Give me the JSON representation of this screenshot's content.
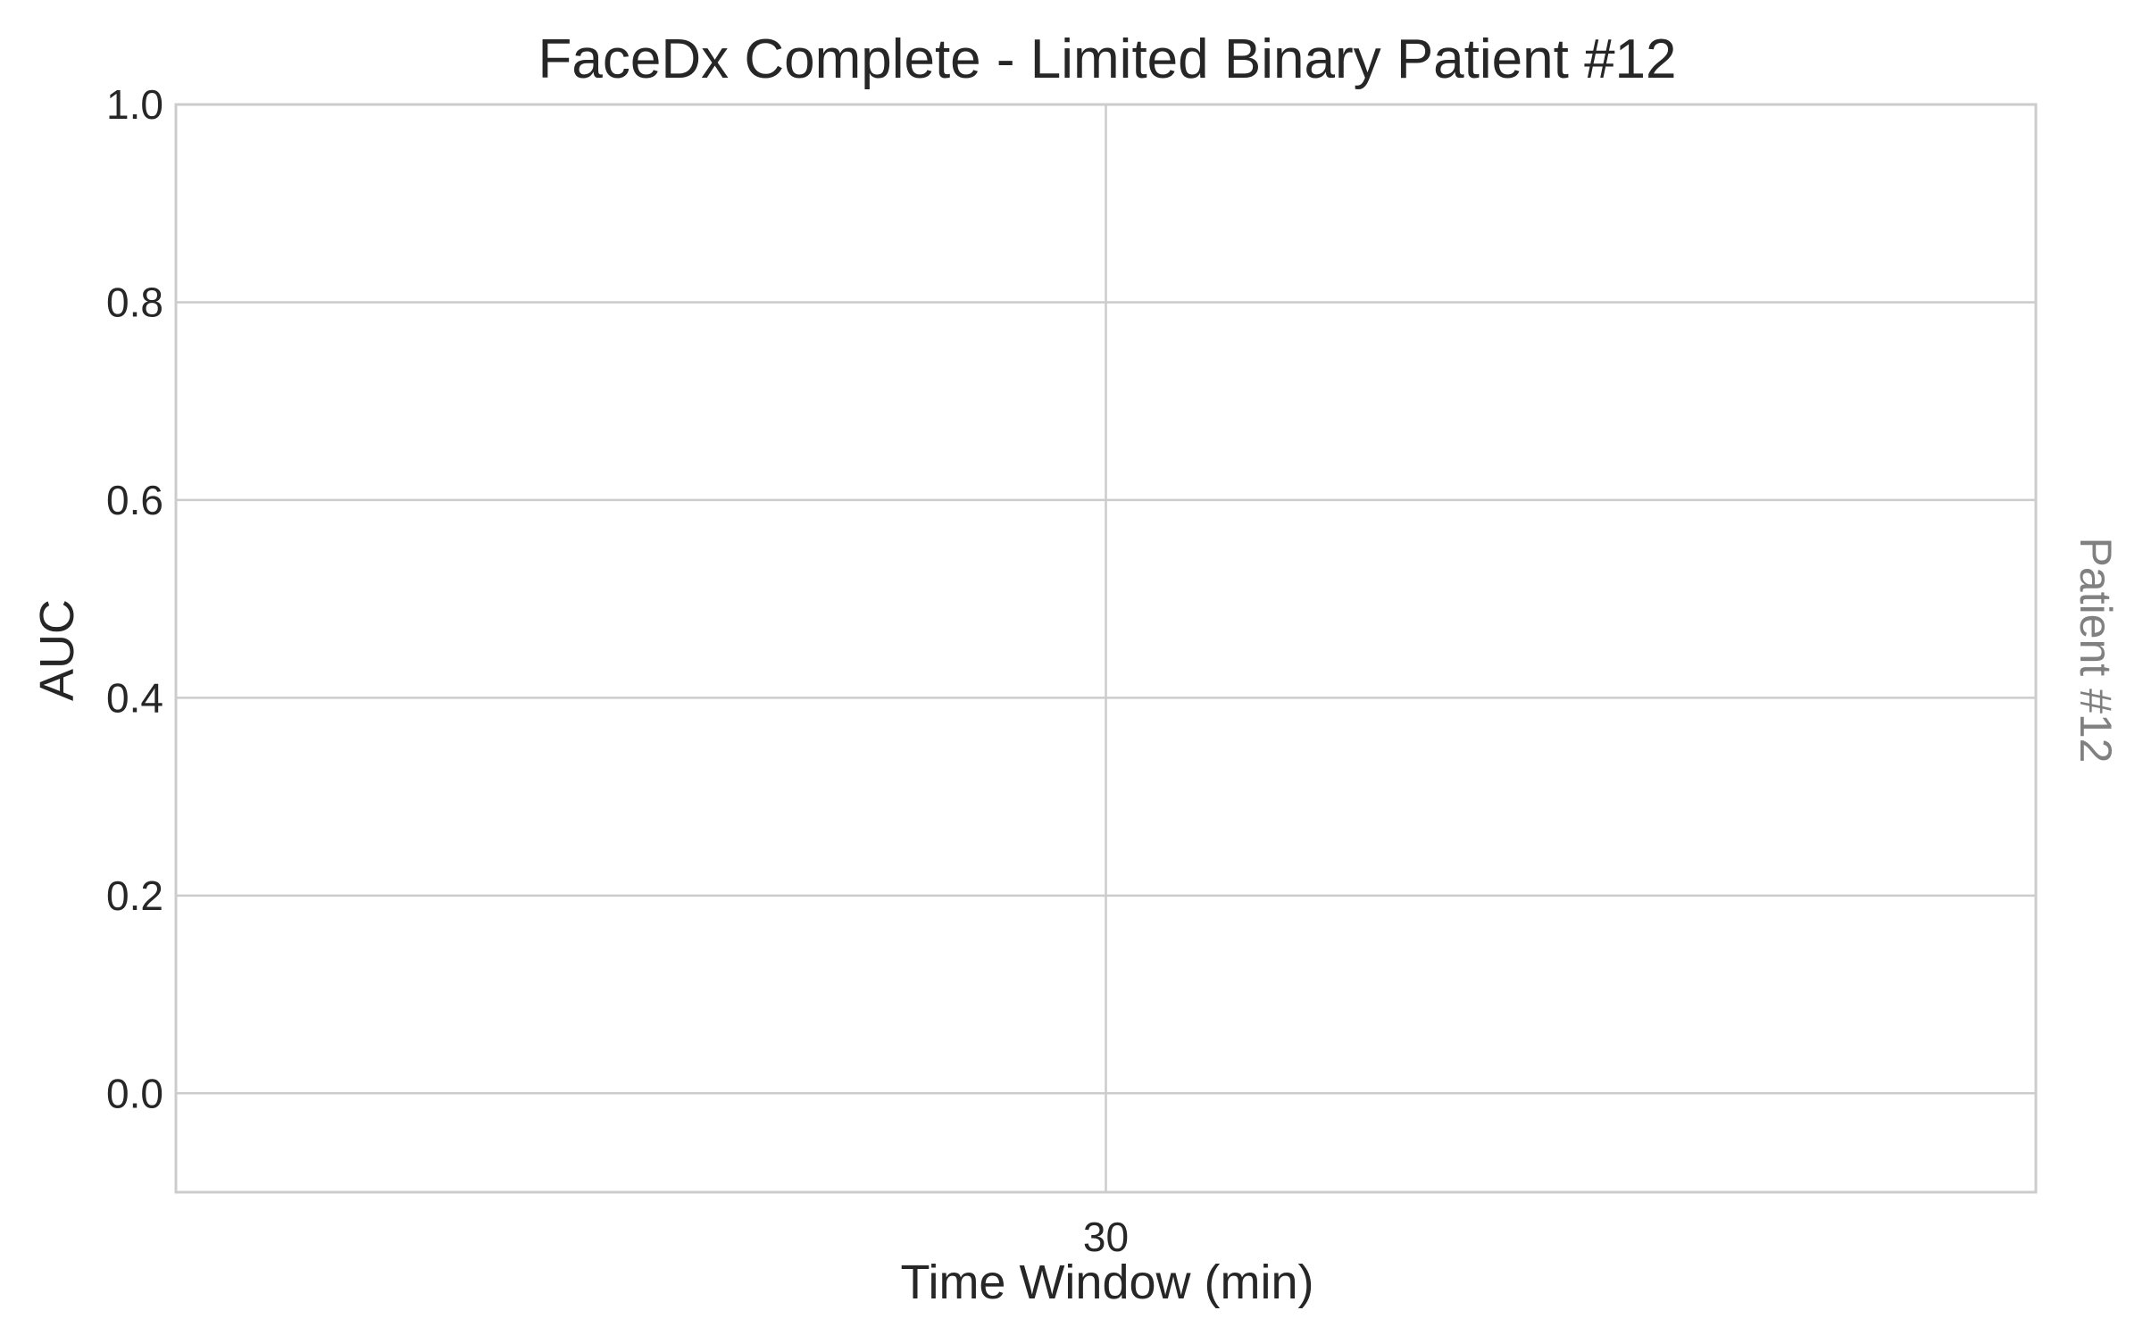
{
  "chart_data": {
    "type": "line",
    "title": "FaceDx Complete - Limited Binary Patient #12",
    "xlabel": "Time Window (min)",
    "ylabel": "AUC",
    "right_label": "Patient #12",
    "x_ticks": [
      30
    ],
    "y_ticks": [
      "0.0",
      "0.2",
      "0.4",
      "0.6",
      "0.8",
      "1.0"
    ],
    "ylim": [
      -0.1,
      1.0
    ],
    "grid": true,
    "series": []
  },
  "colors": {
    "grid": "#cccccc",
    "axis_frame": "#cccccc",
    "text": "#262626",
    "right_label": "#808080"
  }
}
